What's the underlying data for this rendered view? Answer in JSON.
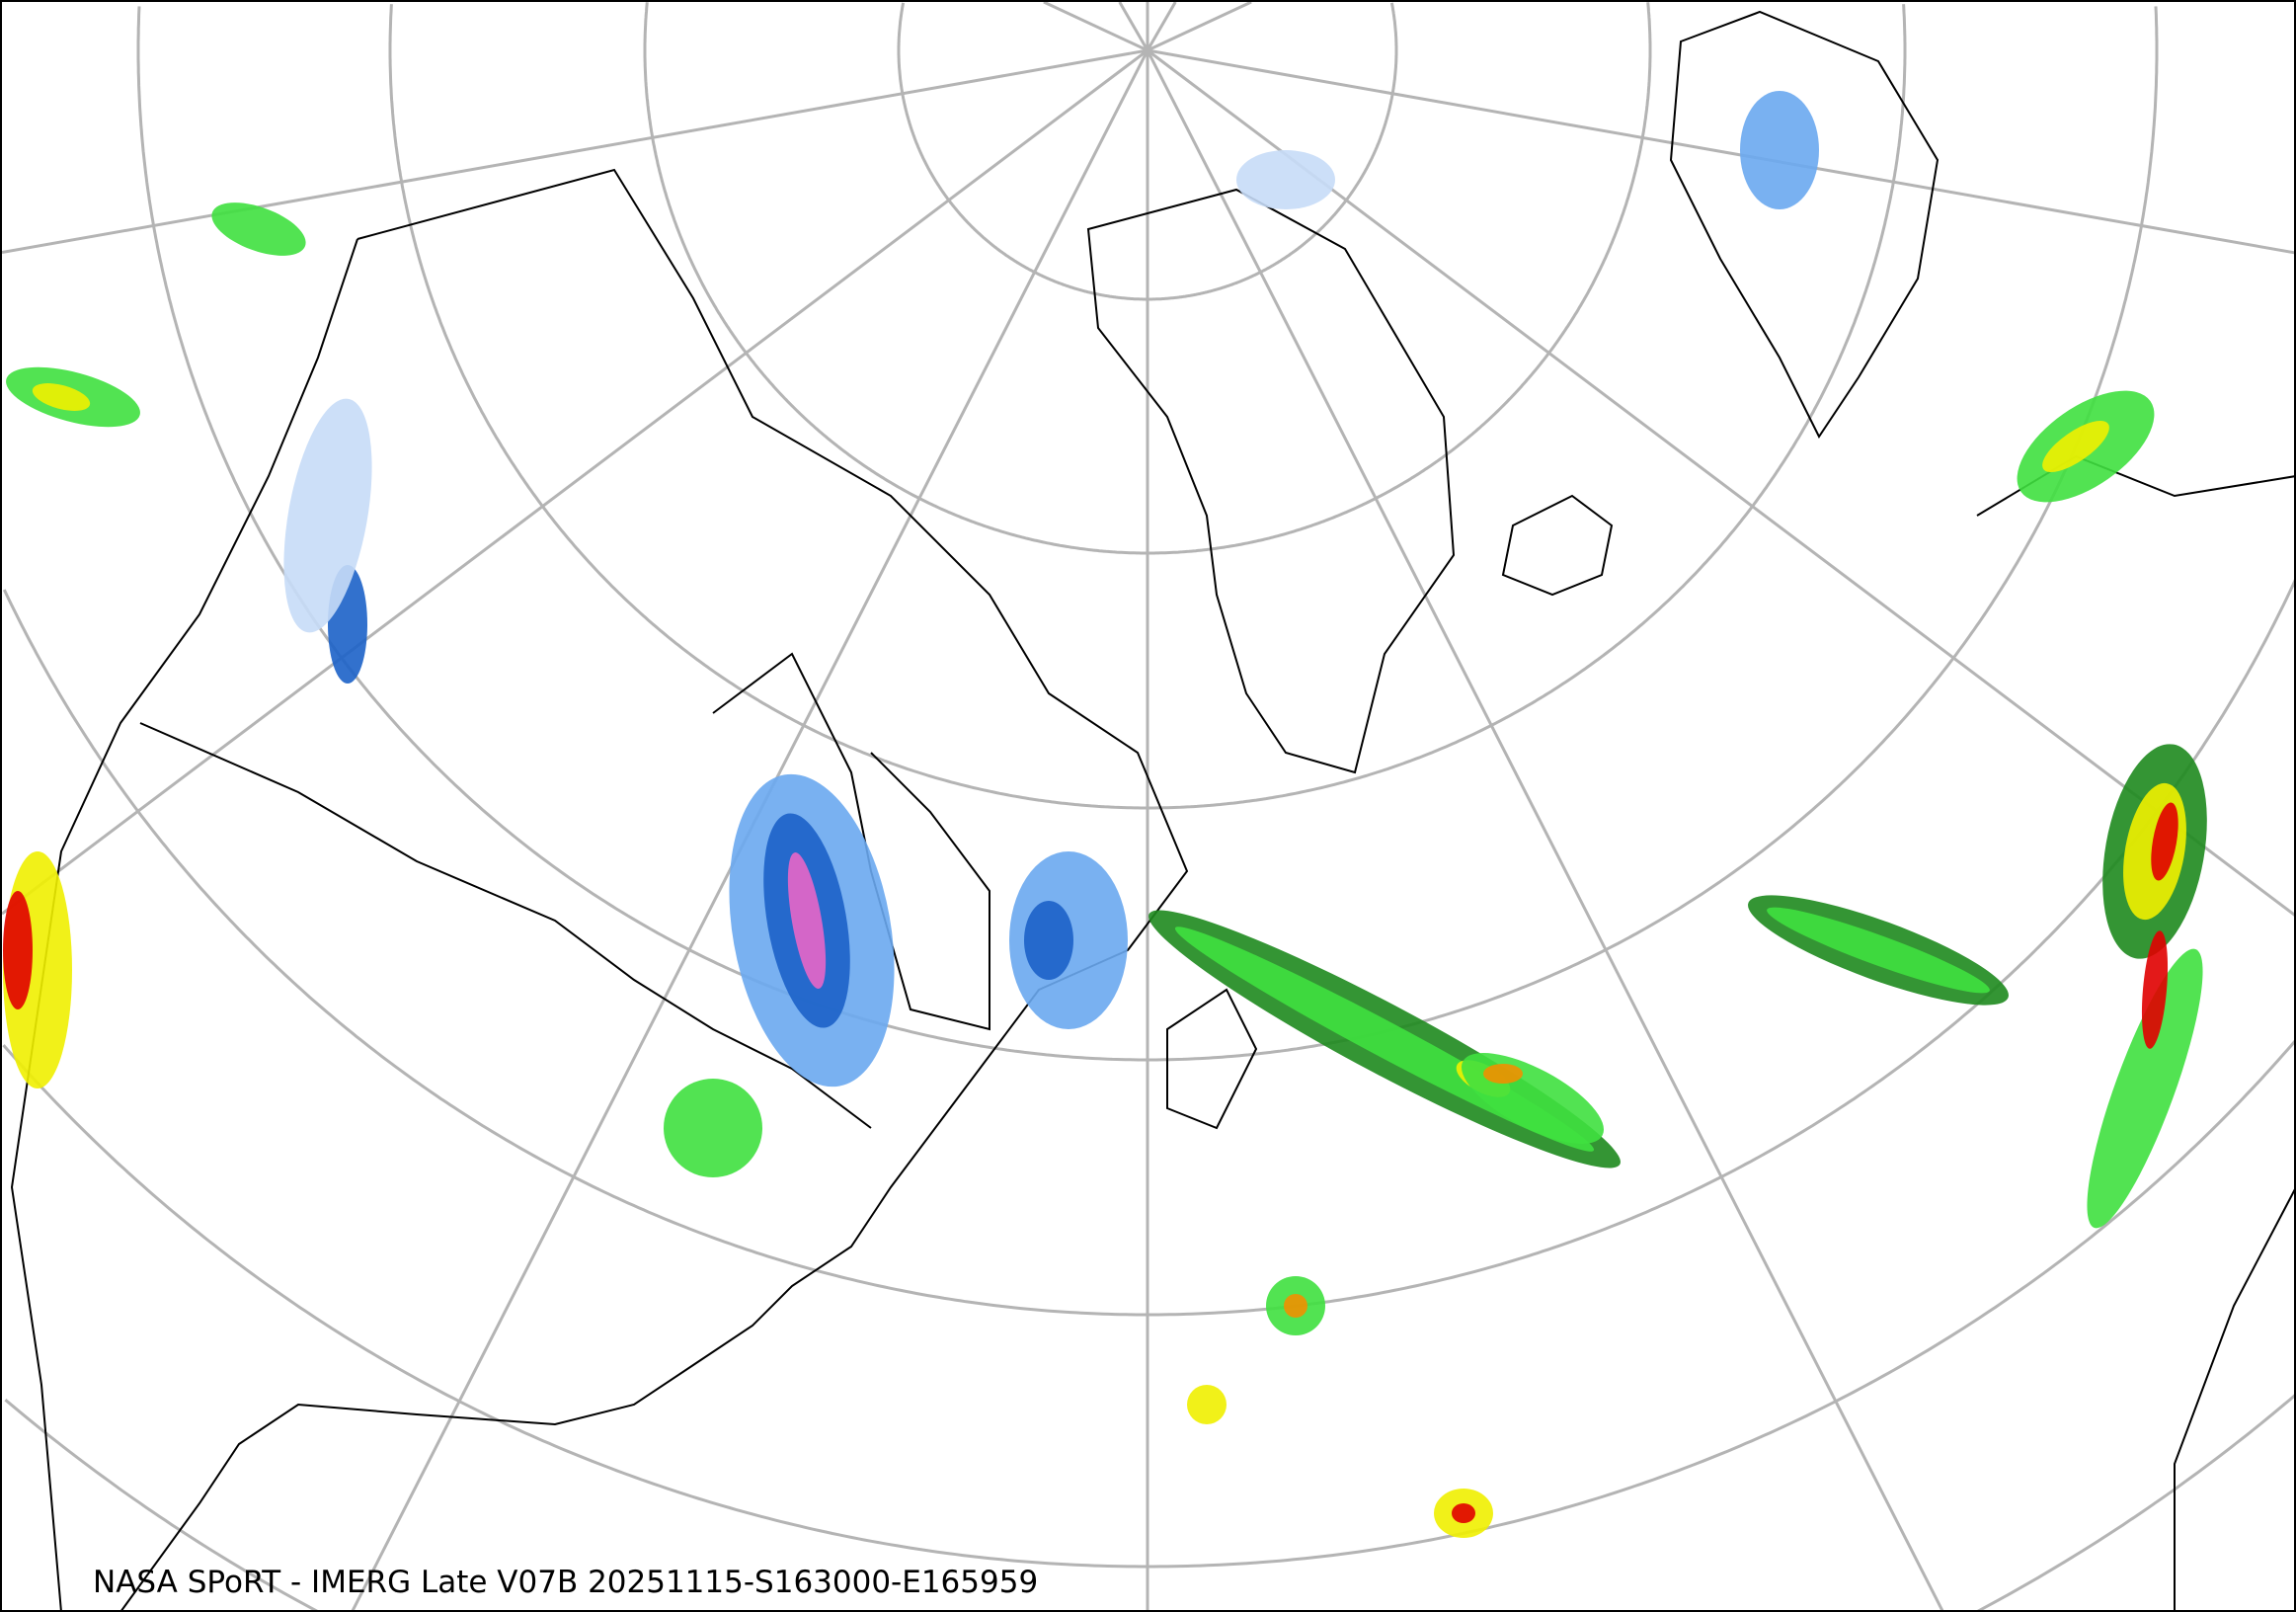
{
  "map": {
    "caption": "NASA SPoRT - IMERG Late V07B 20251115-S163000-E165959",
    "projection": "north polar stereographic",
    "graticule_color": "#b4b4b4",
    "coastline_color": "#000000",
    "precip_palette": {
      "light_snow": "#c6dcf7",
      "snow": "#6aa8f0",
      "heavy_snow": "#1c62c8",
      "very_heavy_snow": "#e866c8",
      "light_rain": "#1e8a1e",
      "rain": "#3fe03f",
      "moderate_rain": "#f0f000",
      "heavy_rain": "#f09000",
      "very_heavy_rain": "#e00000"
    }
  }
}
